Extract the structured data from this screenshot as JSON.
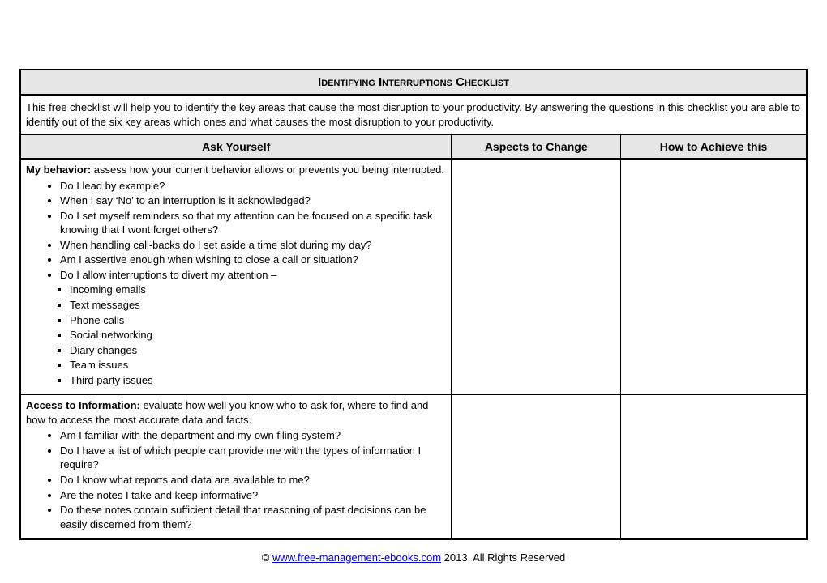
{
  "title": "Identifying Interruptions Checklist",
  "description": "This free checklist will help you to identify the key areas that cause the most disruption to your productivity. By answering the questions in this checklist you are able to identify out of the six key areas which ones and what causes the most disruption to your productivity.",
  "columns": {
    "c1": "Ask Yourself",
    "c2": "Aspects to Change",
    "c3": "How to Achieve this"
  },
  "sections": [
    {
      "lead": "My behavior:",
      "lead_rest": " assess how your current behavior allows or prevents you being interrupted.",
      "bullets": [
        "Do I lead by example?",
        "When I say ‘No’ to an interruption is it acknowledged?",
        "Do I set myself reminders so that my attention can be focused on a specific task knowing that I wont forget others?",
        "When handling call-backs do I set aside a time slot during my day?",
        "Am I assertive enough when wishing to close a call or situation?",
        "Do I allow interruptions to divert my attention –"
      ],
      "sub": [
        "Incoming emails",
        "Text messages",
        "Phone calls",
        "Social networking",
        "Diary changes",
        "Team issues",
        "Third party issues"
      ]
    },
    {
      "lead": "Access to Information:",
      "lead_rest": " evaluate how well you know who to ask for, where to find and how to access the most accurate data and facts.",
      "bullets": [
        "Am I familiar with the department and my own filing system?",
        "Do I have a list of which people can provide me with the types of information I require?",
        "Do I know what reports and data are available to me?",
        "Are the notes I take and keep informative?",
        "Do these notes contain sufficient detail that reasoning of past decisions can be easily discerned from them?"
      ],
      "sub": []
    }
  ],
  "footer": {
    "copyright": "© ",
    "link": "www.free-management-ebooks.com",
    "rest": "  2013. All Rights Reserved"
  }
}
